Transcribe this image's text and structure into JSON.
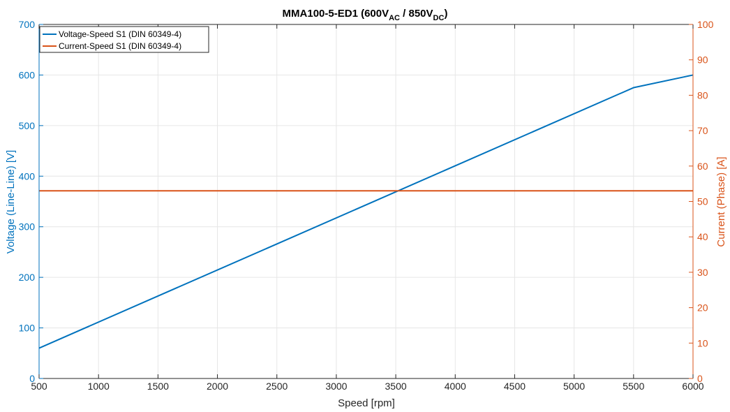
{
  "chart_data": {
    "type": "line",
    "title_parts": {
      "main": "MMA100-5-ED1 (600V",
      "sub1": "AC",
      "mid": " / 850V",
      "sub2": "DC",
      "end": ")"
    },
    "xlabel": "Speed [rpm]",
    "ylabel_left": "Voltage (Line-Line) [V]",
    "ylabel_right": "Current (Phase) [A]",
    "xlim": [
      500,
      6000
    ],
    "ylim_left": [
      0,
      700
    ],
    "ylim_right": [
      0,
      100
    ],
    "x_ticks": [
      "500",
      "1000",
      "1500",
      "2000",
      "2500",
      "3000",
      "3500",
      "4000",
      "4500",
      "5000",
      "5500",
      "6000"
    ],
    "y_left_ticks": [
      "0",
      "100",
      "200",
      "300",
      "400",
      "500",
      "600",
      "700"
    ],
    "y_right_ticks": [
      "0",
      "10",
      "20",
      "30",
      "40",
      "50",
      "60",
      "70",
      "80",
      "90",
      "100"
    ],
    "grid": true,
    "legend_position": "top-left",
    "series": [
      {
        "name": "Voltage-Speed S1 (DIN 60349-4)",
        "axis": "left",
        "color": "#0072BD",
        "x": [
          500,
          5500,
          6000
        ],
        "y": [
          60,
          575,
          600
        ]
      },
      {
        "name": "Current-Speed S1 (DIN 60349-4)",
        "axis": "right",
        "color": "#D95319",
        "x": [
          500,
          6000
        ],
        "y": [
          53,
          53
        ]
      }
    ],
    "colors": {
      "left_axis": "#0072BD",
      "right_axis": "#D95319",
      "grid": "#e6e6e6"
    }
  }
}
